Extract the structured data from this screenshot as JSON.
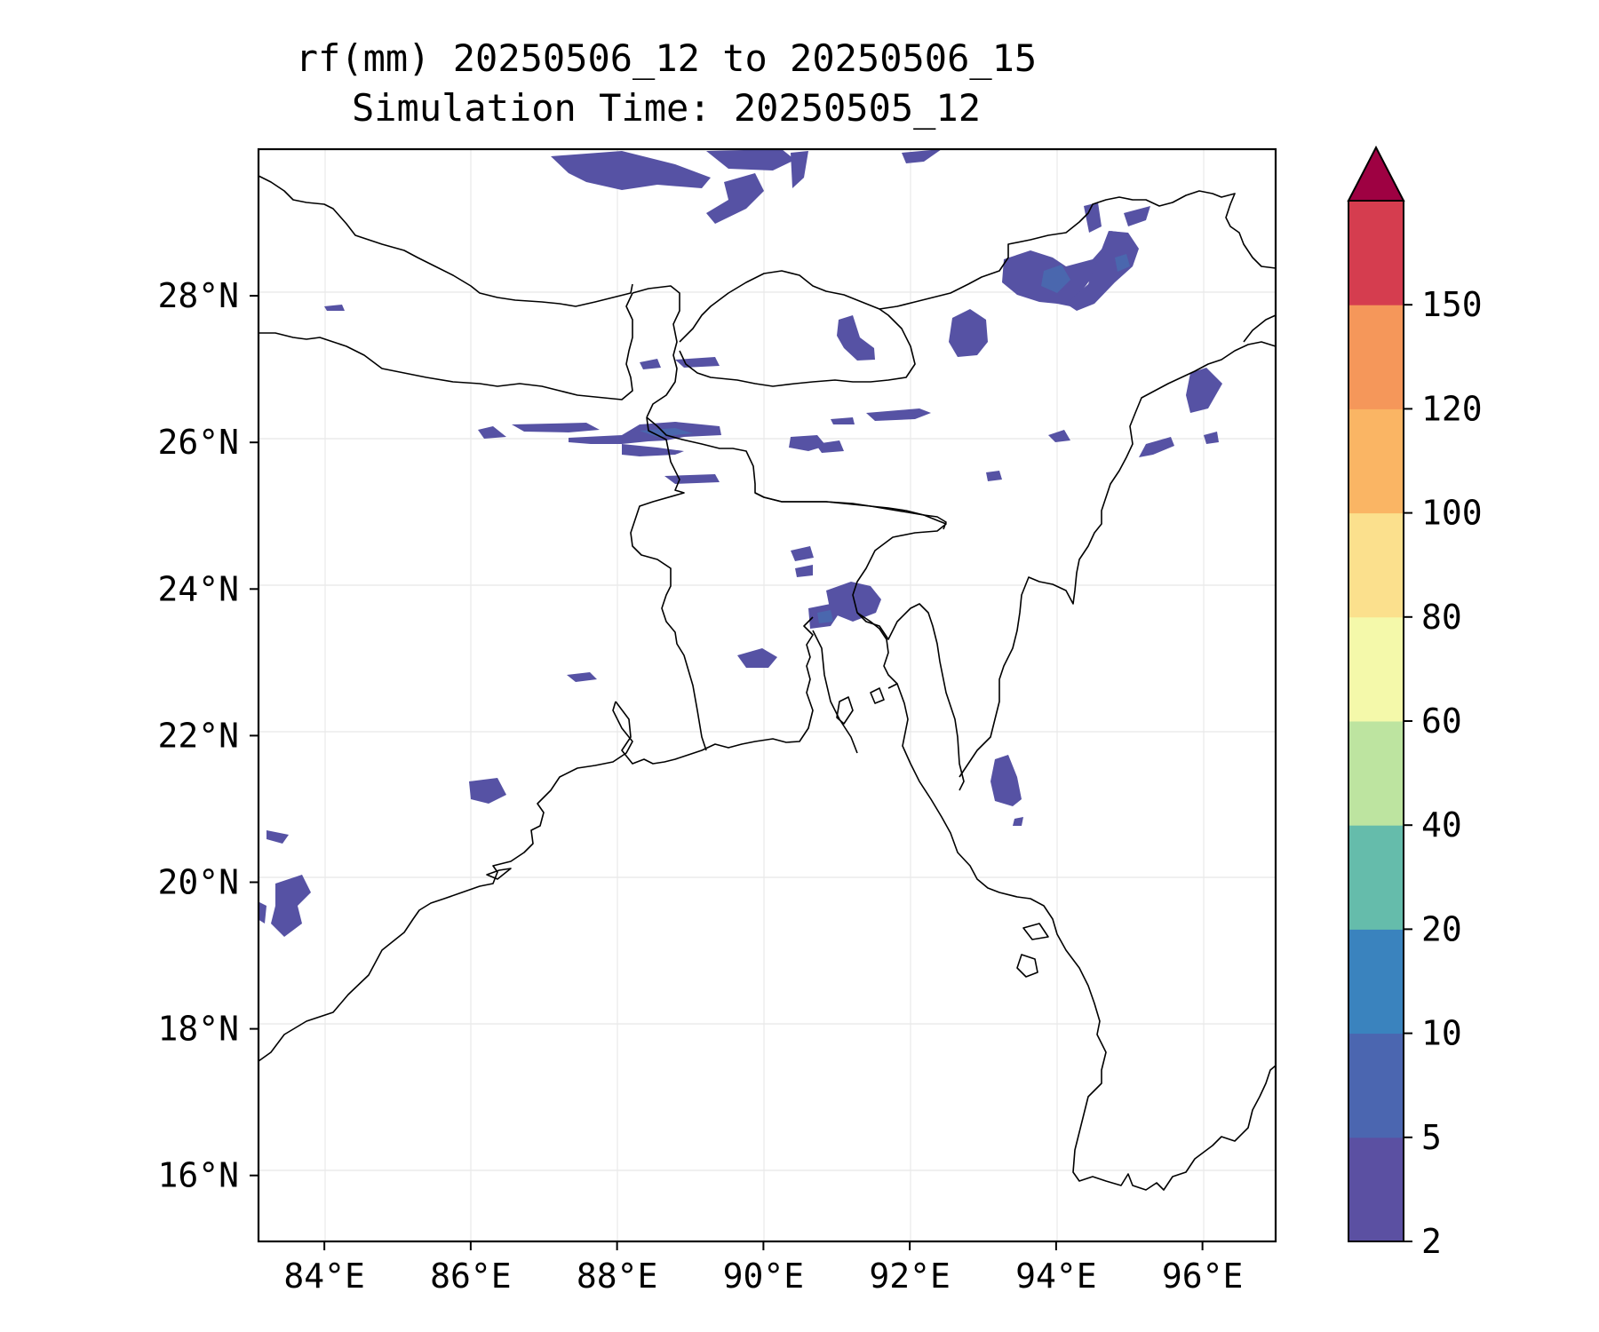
{
  "title": {
    "line1": "rf(mm) 20250506_12 to 20250506_15",
    "line2": "Simulation Time: 20250505_12"
  },
  "map": {
    "lon_range": [
      83.1,
      97.0
    ],
    "lat_range": [
      15.1,
      30.0
    ],
    "lon_ticks": [
      "84°E",
      "86°E",
      "88°E",
      "90°E",
      "92°E",
      "94°E",
      "96°E"
    ],
    "lat_ticks": [
      "16°N",
      "18°N",
      "20°N",
      "22°N",
      "24°N",
      "26°N",
      "28°N"
    ],
    "gridlines": true,
    "coastline_color": "#000000",
    "rain_color_main": "#5652a4",
    "rain_color_light": "#4a67ae"
  },
  "colorbar": {
    "labels": [
      "2",
      "5",
      "10",
      "20",
      "40",
      "60",
      "80",
      "100",
      "120",
      "150"
    ],
    "colors": [
      "#5b50a2",
      "#4b66b0",
      "#3a83be",
      "#65bcab",
      "#bde4a0",
      "#f4f9aa",
      "#fbe08d",
      "#fab564",
      "#f5975a",
      "#d53d4f"
    ],
    "extend_color": "#9e0142",
    "extend": "max"
  }
}
